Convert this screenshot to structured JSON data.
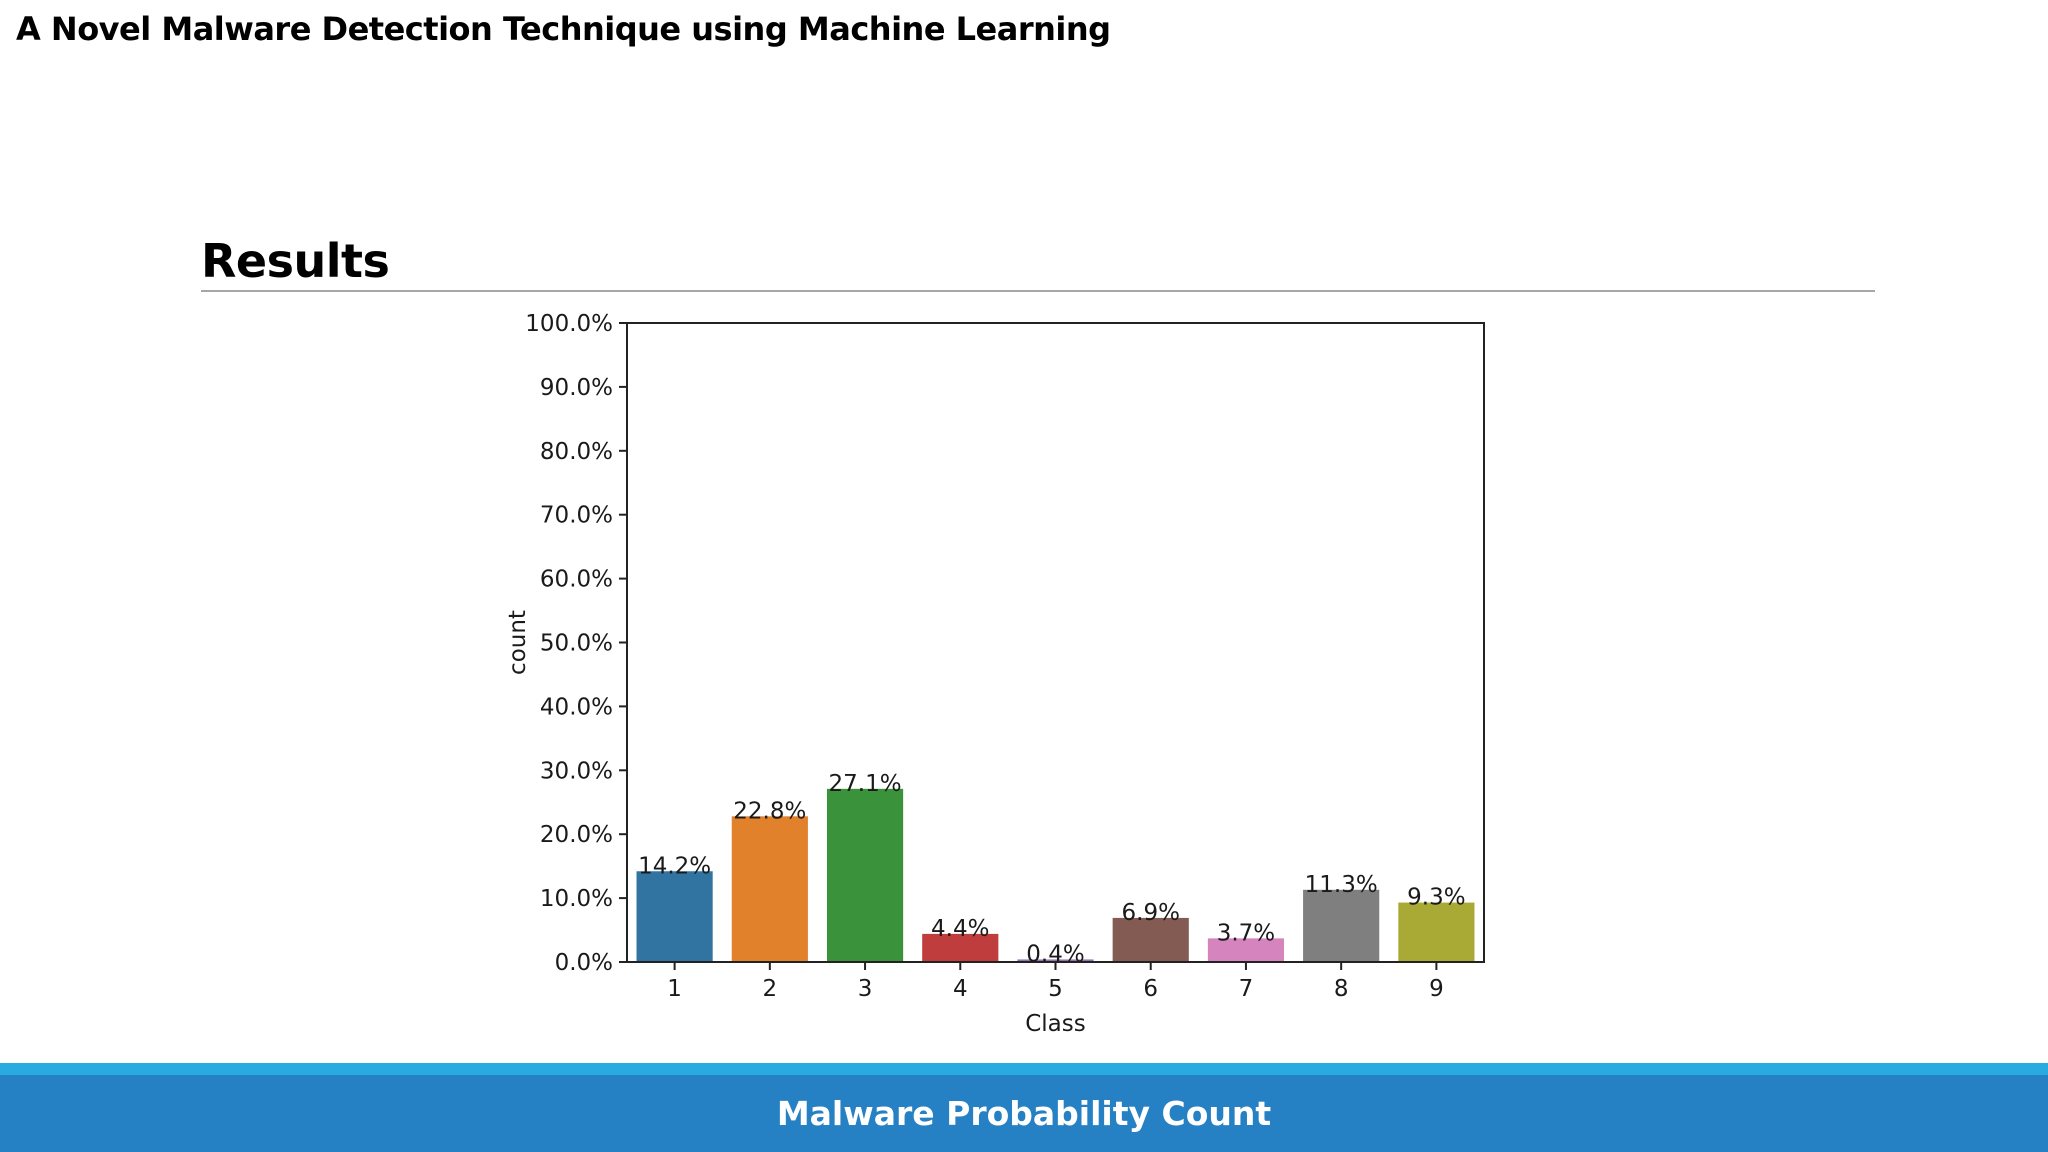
{
  "slide": {
    "title": "A Novel Malware Detection Technique using Machine Learning",
    "heading": "Results",
    "footer_caption": "Malware Probability Count"
  },
  "colors": {
    "footer_band": "#2580c4",
    "footer_accent": "#29abe2"
  },
  "chart_data": {
    "type": "bar",
    "title": "",
    "xlabel": "Class",
    "ylabel": "count",
    "categories": [
      "1",
      "2",
      "3",
      "4",
      "5",
      "6",
      "7",
      "8",
      "9"
    ],
    "values": [
      14.2,
      22.8,
      27.1,
      4.4,
      0.4,
      6.9,
      3.7,
      11.3,
      9.3
    ],
    "value_labels": [
      "14.2%",
      "22.8%",
      "27.1%",
      "4.4%",
      "0.4%",
      "6.9%",
      "3.7%",
      "11.3%",
      "9.3%"
    ],
    "bar_colors": [
      "#3274a1",
      "#e1812c",
      "#3a923a",
      "#c03d3e",
      "#9372b2",
      "#845b53",
      "#d684bd",
      "#7f7f7f",
      "#a9aa35"
    ],
    "ylim": [
      0,
      100
    ],
    "yticks": [
      0,
      10,
      20,
      30,
      40,
      50,
      60,
      70,
      80,
      90,
      100
    ],
    "ytick_labels": [
      "0.0%",
      "10.0%",
      "20.0%",
      "30.0%",
      "40.0%",
      "50.0%",
      "60.0%",
      "70.0%",
      "80.0%",
      "90.0%",
      "100.0%"
    ],
    "grid": false,
    "legend": "none"
  }
}
